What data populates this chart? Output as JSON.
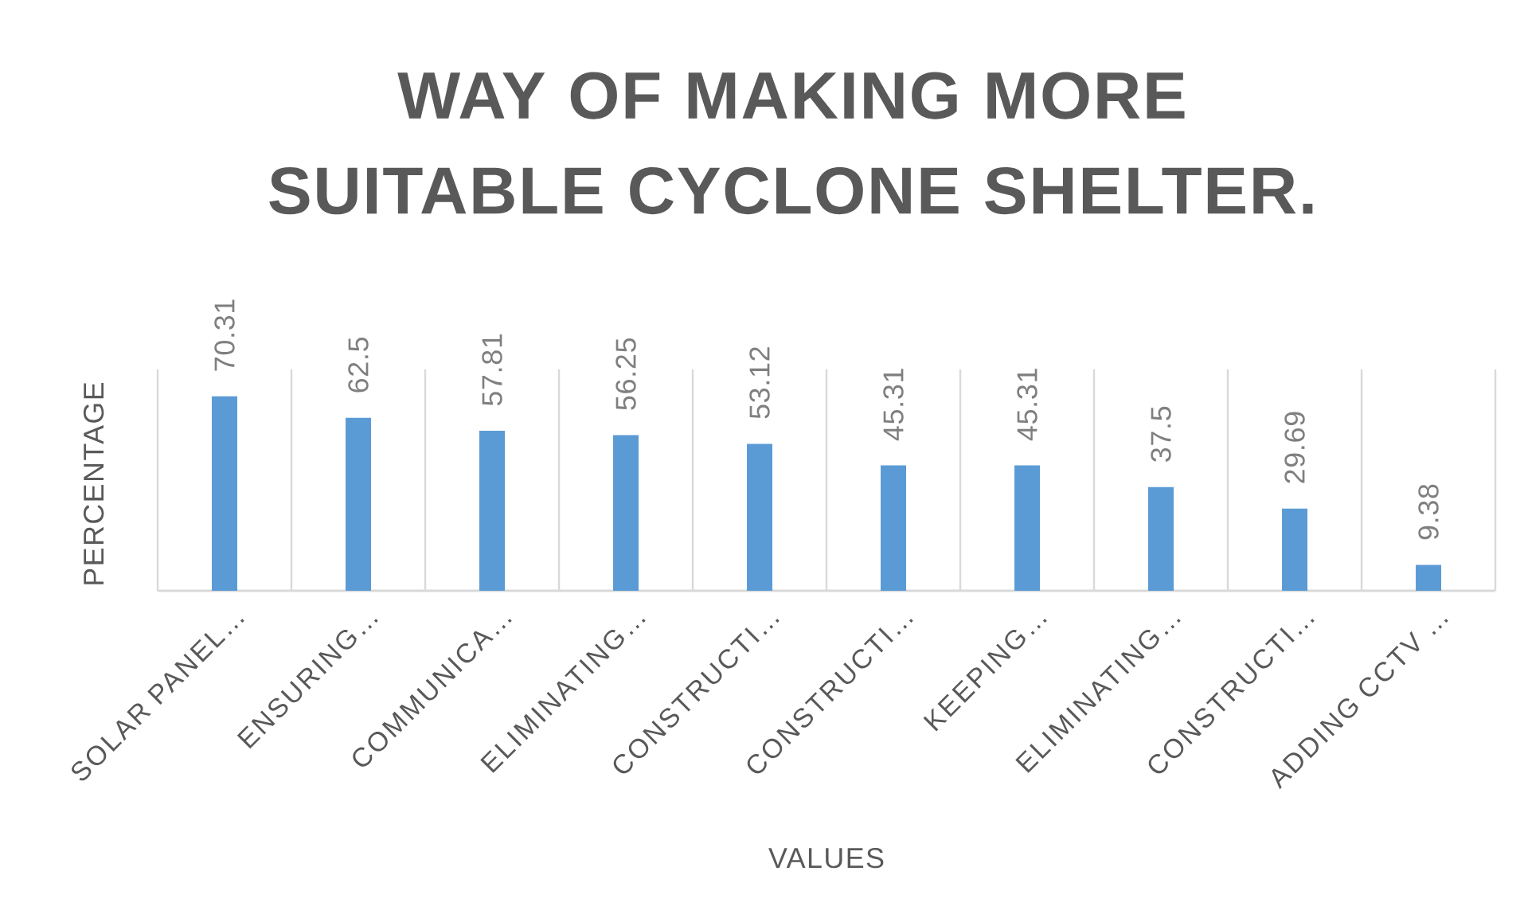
{
  "chart_data": {
    "type": "bar",
    "title": "WAY OF MAKING MORE SUITABLE CYCLONE SHELTER.",
    "xlabel": "VALUES",
    "ylabel": "PERCENTAGE",
    "categories": [
      "SOLAR PANEL…",
      "ENSURING…",
      "COMMUNICA…",
      "ELIMINATING…",
      "CONSTRUCTI…",
      "CONSTRUCTI…",
      "KEEPING…",
      "ELIMINATING…",
      "CONSTRUCTI…",
      "ADDING CCTV …"
    ],
    "values": [
      70.31,
      62.5,
      57.81,
      56.25,
      53.12,
      45.31,
      45.31,
      37.5,
      29.69,
      9.38
    ],
    "color": "#5b9bd5",
    "grid": "x",
    "data_labels": true,
    "tick_labels": "x"
  }
}
